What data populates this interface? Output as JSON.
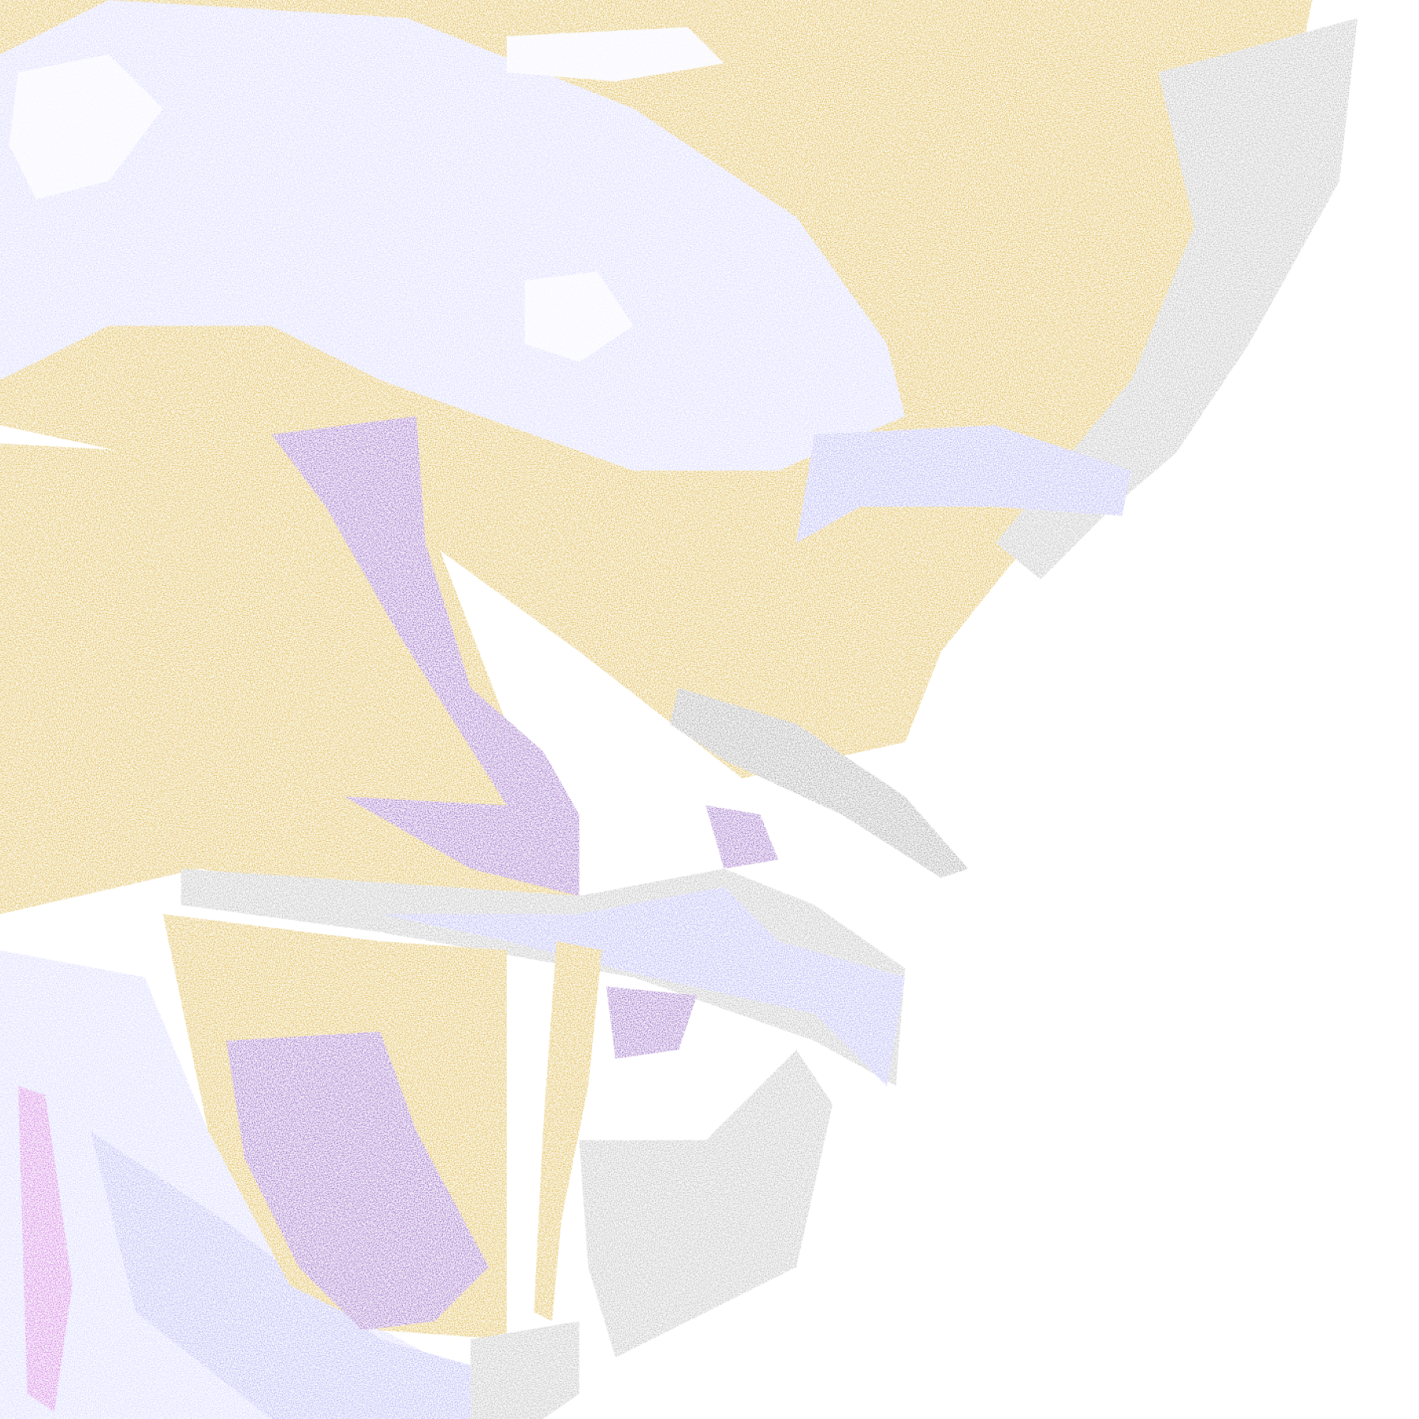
{
  "map": {
    "type": "classified-satellite-imagery",
    "background": "#ffffff",
    "classes": {
      "gold": "#d4a010",
      "purple": "#7a3cb4",
      "lavender": "#c8c8ff",
      "periwinkle": "#9a9af2",
      "gray": "#a8a8a8",
      "dark_gray": "#8c8c8c",
      "magenta": "#c050d8",
      "white_cloud": "#f0f0ff"
    }
  }
}
